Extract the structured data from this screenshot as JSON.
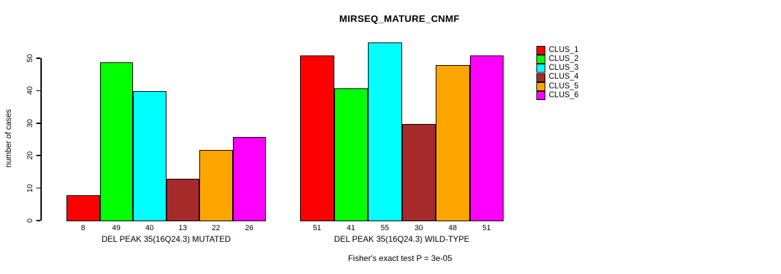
{
  "title": "MIRSEQ_MATURE_CNMF",
  "chart_data": {
    "type": "bar",
    "title": "MIRSEQ_MATURE_CNMF",
    "xlabel": "",
    "ylabel": "number of cases",
    "ylim": [
      0,
      55
    ],
    "yticks": [
      0,
      10,
      20,
      30,
      40,
      50
    ],
    "grid": false,
    "legend_position": "right",
    "series": [
      {
        "name": "CLUS_1",
        "color": "#FF0000"
      },
      {
        "name": "CLUS_2",
        "color": "#00FF00"
      },
      {
        "name": "CLUS_3",
        "color": "#00FFFF"
      },
      {
        "name": "CLUS_4",
        "color": "#A52A2A"
      },
      {
        "name": "CLUS_5",
        "color": "#FFA500"
      },
      {
        "name": "CLUS_6",
        "color": "#FF00FF"
      }
    ],
    "groups": [
      {
        "label": "DEL PEAK 35(16Q24.3) MUTATED",
        "values": [
          8,
          49,
          40,
          13,
          22,
          26
        ]
      },
      {
        "label": "DEL PEAK 35(16Q24.3) WILD-TYPE",
        "values": [
          51,
          41,
          55,
          30,
          48,
          51
        ]
      }
    ],
    "bar_value_labels": [
      [
        8,
        49,
        40,
        13,
        22,
        26
      ],
      [
        51,
        41,
        55,
        30,
        48,
        51
      ]
    ],
    "annotation": "Fisher's exact test P = 3e-05"
  }
}
